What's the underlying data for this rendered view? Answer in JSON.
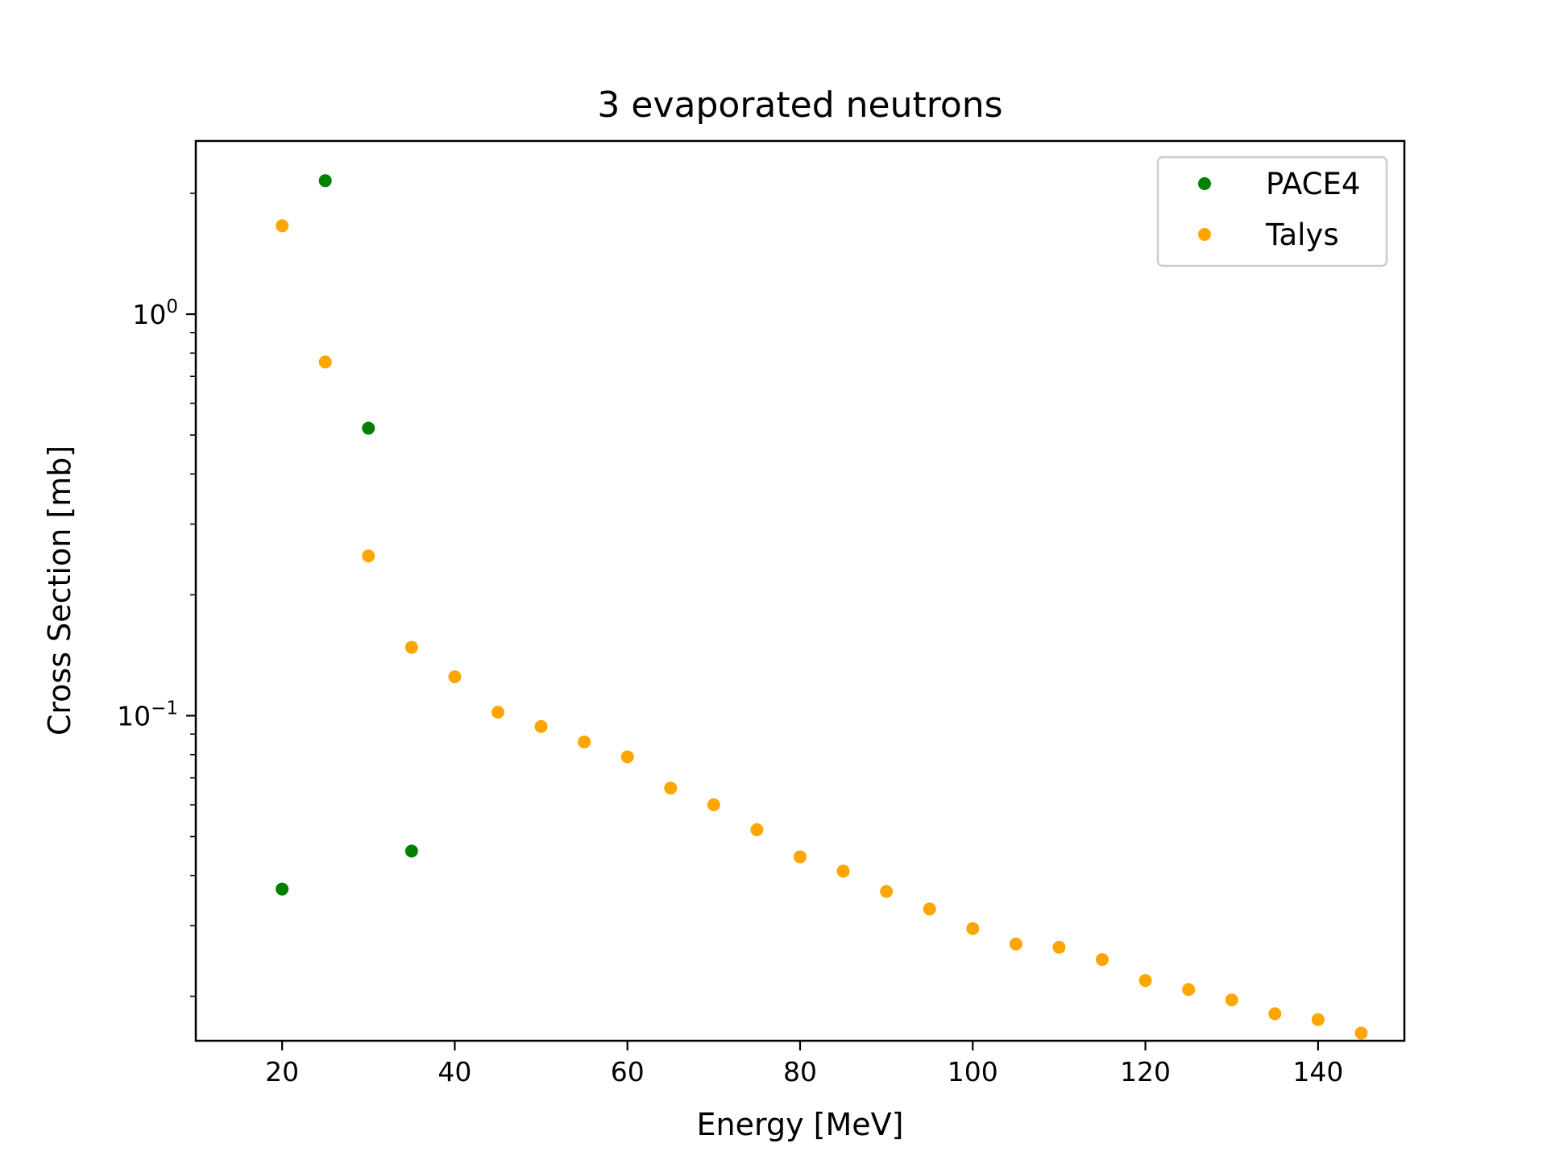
{
  "chart_data": {
    "type": "scatter",
    "title": "3 evaporated neutrons",
    "xlabel": "Energy [MeV]",
    "ylabel": "Cross Section [mb]",
    "xlim": [
      10,
      150
    ],
    "ylim": [
      0.0155,
      2.7
    ],
    "yscale": "log",
    "grid": false,
    "legend_position": "top-right",
    "x_ticks": [
      20,
      40,
      60,
      80,
      100,
      120,
      140
    ],
    "x_tick_labels": [
      "20",
      "40",
      "60",
      "80",
      "100",
      "120",
      "140"
    ],
    "y_major_ticks": [
      {
        "value": 1,
        "base": "10",
        "exponent": "0"
      },
      {
        "value": 0.1,
        "base": "10",
        "exponent": "−1"
      }
    ],
    "y_minor_ticks": [
      0.02,
      0.03,
      0.04,
      0.05,
      0.06,
      0.07,
      0.08,
      0.09,
      0.2,
      0.3,
      0.4,
      0.5,
      0.6,
      0.7,
      0.8,
      0.9,
      2
    ],
    "series": [
      {
        "name": "PACE4",
        "color": "#008000",
        "x": [
          20,
          25,
          30,
          35
        ],
        "y": [
          0.037,
          2.15,
          0.52,
          0.046
        ]
      },
      {
        "name": "Talys",
        "color": "#FFA500",
        "x": [
          20,
          25,
          30,
          35,
          40,
          45,
          50,
          55,
          60,
          65,
          70,
          75,
          80,
          85,
          90,
          95,
          100,
          105,
          110,
          115,
          120,
          125,
          130,
          135,
          140,
          145
        ],
        "y": [
          1.66,
          0.76,
          0.25,
          0.148,
          0.125,
          0.102,
          0.094,
          0.086,
          0.079,
          0.066,
          0.06,
          0.052,
          0.0445,
          0.041,
          0.0365,
          0.033,
          0.0295,
          0.027,
          0.0265,
          0.0247,
          0.0219,
          0.0208,
          0.0196,
          0.0181,
          0.0175,
          0.0162
        ]
      }
    ]
  }
}
